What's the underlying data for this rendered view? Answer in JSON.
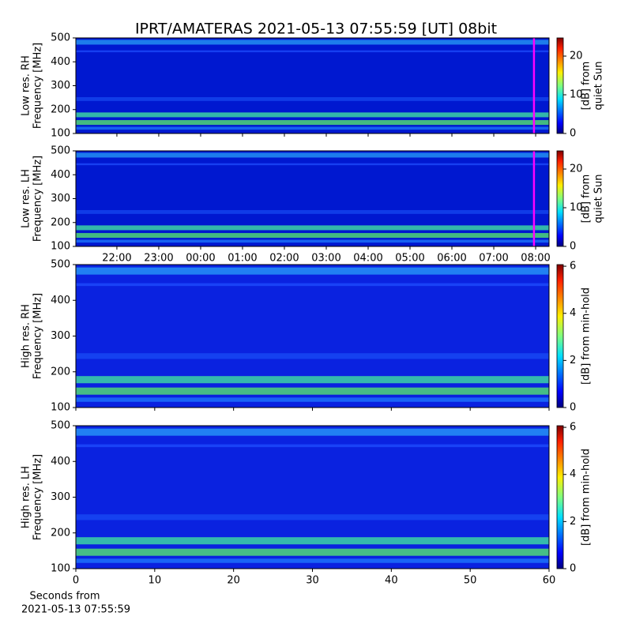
{
  "title": "IPRT/AMATERAS 2021-05-13 07:55:59 [UT]   08bit",
  "chart_data": [
    {
      "type": "heatmap",
      "ylabel": [
        "Low res. RH",
        "Frequency [MHz]"
      ],
      "ylim": [
        100,
        500
      ],
      "yticks": [
        100,
        200,
        300,
        400,
        500
      ],
      "xlim": [
        21.02,
        32.32
      ],
      "vline": {
        "x": 31.96,
        "color": "#ff00ff"
      },
      "clabel": [
        "[dB] from",
        "quiet Sun"
      ],
      "clim": [
        0,
        24.7
      ],
      "cticks": [
        0,
        10,
        20
      ]
    },
    {
      "type": "heatmap",
      "ylabel": [
        "Low res. LH",
        "Frequency [MHz]"
      ],
      "ylim": [
        100,
        500
      ],
      "yticks": [
        100,
        200,
        300,
        400,
        500
      ],
      "xlim": [
        21.02,
        32.32
      ],
      "vline": {
        "x": 31.96,
        "color": "#ff00ff"
      },
      "xticks": [
        {
          "value": 22,
          "label": "22:00"
        },
        {
          "value": 23,
          "label": "23:00"
        },
        {
          "value": 24,
          "label": "00:00"
        },
        {
          "value": 25,
          "label": "01:00"
        },
        {
          "value": 26,
          "label": "02:00"
        },
        {
          "value": 27,
          "label": "03:00"
        },
        {
          "value": 28,
          "label": "04:00"
        },
        {
          "value": 29,
          "label": "05:00"
        },
        {
          "value": 30,
          "label": "06:00"
        },
        {
          "value": 31,
          "label": "07:00"
        },
        {
          "value": 32,
          "label": "08:00"
        }
      ],
      "clabel": [
        "[dB] from",
        "quiet Sun"
      ],
      "clim": [
        0,
        24.7
      ],
      "cticks": [
        0,
        10,
        20
      ]
    },
    {
      "type": "heatmap",
      "ylabel": [
        "High res. RH",
        "Frequency [MHz]"
      ],
      "ylim": [
        100,
        500
      ],
      "yticks": [
        100,
        200,
        300,
        400,
        500
      ],
      "xlim": [
        0,
        60
      ],
      "clabel": [
        "[dB] from min-hold"
      ],
      "clim": [
        0,
        6.07
      ],
      "cticks": [
        0,
        2,
        4,
        6
      ]
    },
    {
      "type": "heatmap",
      "ylabel": [
        "High res. LH",
        "Frequency [MHz]"
      ],
      "ylim": [
        100,
        500
      ],
      "yticks": [
        100,
        200,
        300,
        400,
        500
      ],
      "xlim": [
        0,
        60
      ],
      "xticks": [
        0,
        10,
        20,
        30,
        40,
        50,
        60
      ],
      "xlabel": [
        "Seconds from",
        "2021-05-13 07:55:59"
      ],
      "clabel": [
        "[dB] from min-hold"
      ],
      "clim": [
        0,
        6.07
      ],
      "cticks": [
        0,
        2,
        4,
        6
      ]
    }
  ]
}
